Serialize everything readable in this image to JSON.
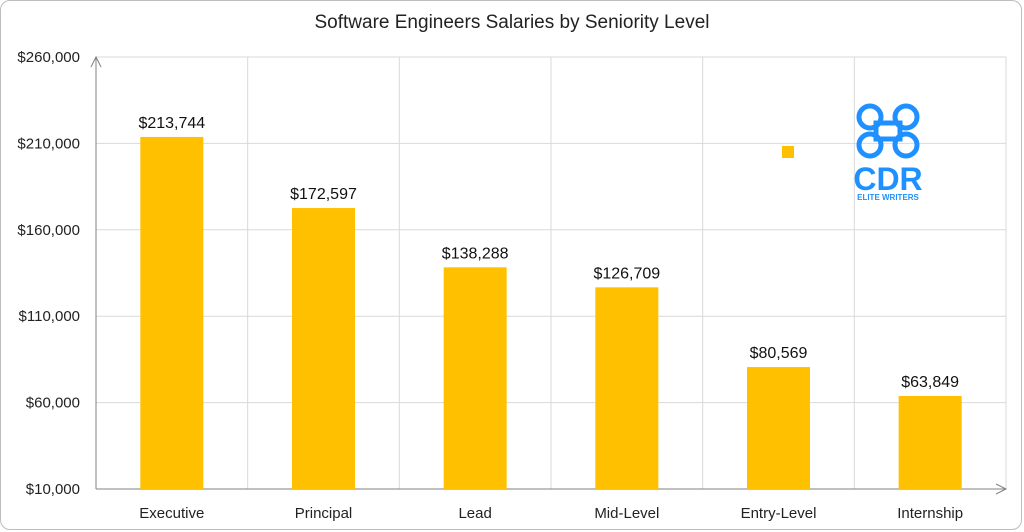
{
  "chart_data": {
    "type": "bar",
    "title": "Software Engineers Salaries by Seniority Level",
    "categories": [
      "Executive",
      "Principal",
      "Lead",
      "Mid-Level",
      "Entry-Level",
      "Internship"
    ],
    "values": [
      213744,
      172597,
      138288,
      126709,
      80569,
      63849
    ],
    "data_labels": [
      "$213,744",
      "$172,597",
      "$138,288",
      "$126,709",
      "$80,569",
      "$63,849"
    ],
    "ylim": [
      10000,
      260000
    ],
    "yticks": [
      10000,
      60000,
      110000,
      160000,
      210000,
      260000
    ],
    "ytick_labels": [
      "$10,000",
      "$60,000",
      "$110,000",
      "$160,000",
      "$210,000",
      "$260,000"
    ],
    "xlabel": "",
    "ylabel": "",
    "grid": true,
    "bar_color": "#FFC000"
  },
  "logo": {
    "main": "CDR",
    "sub": "ELITE WRITERS",
    "color": "#1E90FF",
    "icon": "command-key-icon"
  }
}
